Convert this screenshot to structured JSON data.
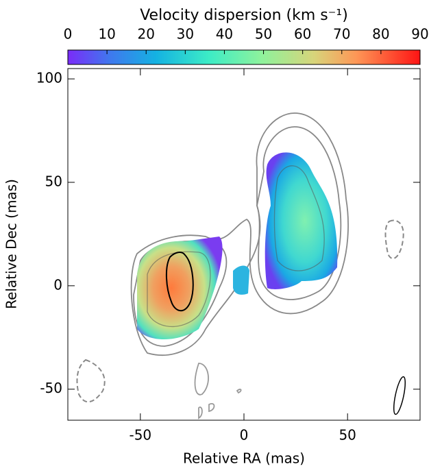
{
  "chart_data": {
    "type": "image",
    "colorbar_label": "Velocity dispersion (km s⁻¹)",
    "clim": [
      0,
      90
    ],
    "cticks": [
      0,
      10,
      20,
      30,
      40,
      50,
      60,
      70,
      80,
      90
    ],
    "xlabel": "Relative RA (mas)",
    "ylabel": "Relative Dec (mas)",
    "xlim": [
      -85,
      85
    ],
    "ylim": [
      -65,
      105
    ],
    "xticks": [
      -50,
      0,
      50
    ],
    "yticks": [
      -50,
      0,
      50,
      100
    ]
  }
}
